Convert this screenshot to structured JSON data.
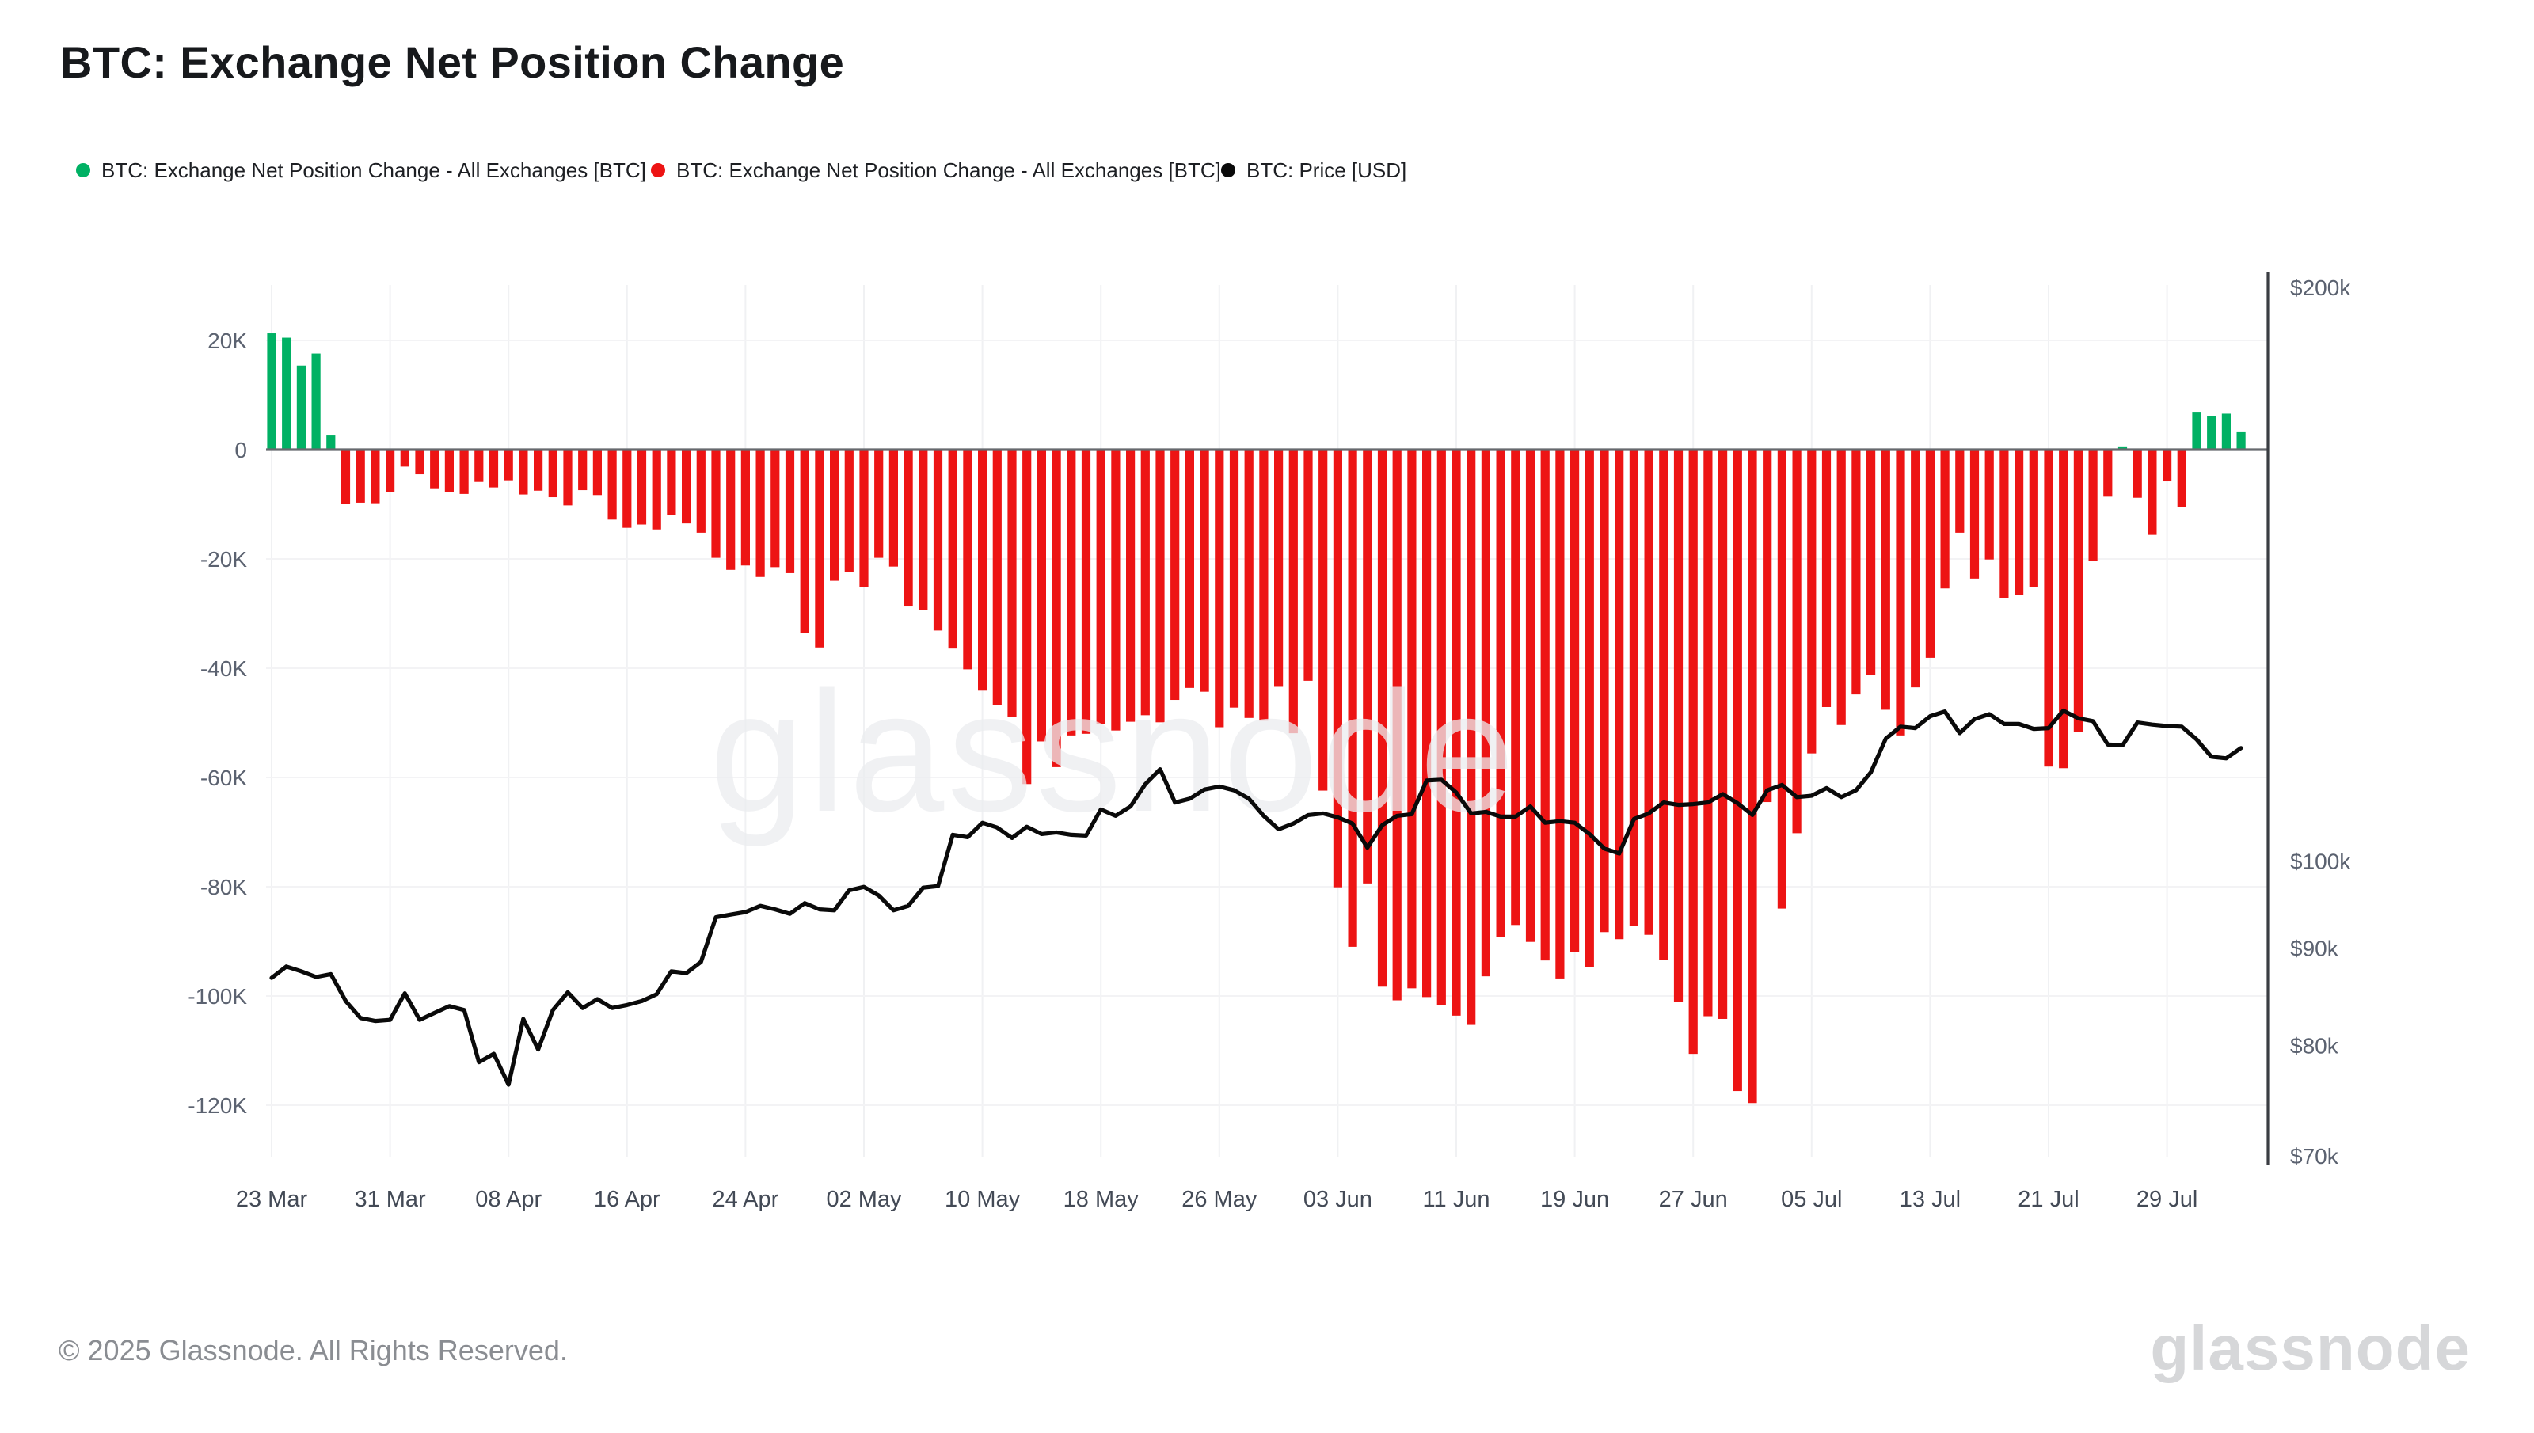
{
  "header": {
    "title": "BTC: Exchange Net Position Change"
  },
  "legend": [
    {
      "label": "BTC: Exchange Net Position Change - All Exchanges [BTC]",
      "color": "#00b164",
      "x": 48
    },
    {
      "label": "BTC: Exchange Net Position Change - All Exchanges [BTC]",
      "color": "#ed1414",
      "x": 411
    },
    {
      "label": "BTC: Price [USD]",
      "color": "#0a0a0a",
      "x": 771
    }
  ],
  "footer": {
    "copyright": "© 2025 Glassnode. All Rights Reserved.",
    "brand": "glassnode"
  },
  "watermark": {
    "text": "glassnode",
    "color": "#ebecef"
  },
  "chart_data": {
    "type": "bar",
    "title": "BTC: Exchange Net Position Change",
    "start_date": "2025-03-23",
    "x_tick_labels": [
      "23 Mar",
      "31 Mar",
      "08 Apr",
      "16 Apr",
      "24 Apr",
      "02 May",
      "10 May",
      "18 May",
      "26 May",
      "03 Jun",
      "11 Jun",
      "19 Jun",
      "27 Jun",
      "05 Jul",
      "13 Jul",
      "21 Jul",
      "29 Jul"
    ],
    "x_tick_day_indices": [
      0,
      8,
      16,
      24,
      32,
      40,
      48,
      56,
      64,
      72,
      80,
      88,
      96,
      104,
      112,
      120,
      128
    ],
    "left_axis": {
      "unit": "BTC (thousands)",
      "tick_labels": [
        "20K",
        "0",
        "-20K",
        "-40K",
        "-60K",
        "-80K",
        "-100K",
        "-120K"
      ],
      "tick_values": [
        20,
        0,
        -20,
        -40,
        -60,
        -80,
        -100,
        -120
      ],
      "grid": true
    },
    "right_axis": {
      "scale": "log",
      "unit": "USD",
      "tick_labels": [
        "$200k",
        "$100k",
        "$90k",
        "$80k",
        "$70k"
      ],
      "tick_values": [
        200,
        100,
        90,
        80,
        70
      ]
    },
    "legend_position": "top",
    "series": [
      {
        "name": "BTC: Exchange Net Position Change - All Exchanges [BTC]",
        "type": "bar",
        "axis": "left",
        "color_positive": "#00b164",
        "color_negative": "#ed1414",
        "values_k_btc": [
          21.3,
          20.5,
          15.4,
          17.6,
          2.6,
          -9.9,
          -9.7,
          -9.8,
          -7.7,
          -3.1,
          -4.5,
          -7.2,
          -7.8,
          -8.1,
          -5.9,
          -6.9,
          -5.6,
          -8.2,
          -7.5,
          -8.7,
          -10.2,
          -7.4,
          -8.3,
          -12.8,
          -14.3,
          -13.7,
          -14.6,
          -11.9,
          -13.5,
          -15.2,
          -19.8,
          -22.0,
          -21.2,
          -23.3,
          -21.5,
          -22.6,
          -33.5,
          -36.2,
          -24.0,
          -22.4,
          -25.2,
          -19.8,
          -21.4,
          -28.7,
          -29.3,
          -33.1,
          -36.4,
          -40.2,
          -44.1,
          -46.8,
          -48.9,
          -61.2,
          -53.4,
          -58.1,
          -52.3,
          -52.0,
          -50.2,
          -51.4,
          -49.8,
          -48.6,
          -49.9,
          -45.8,
          -43.6,
          -44.3,
          -50.8,
          -47.2,
          -49.1,
          -49.6,
          -43.4,
          -51.9,
          -42.3,
          -62.4,
          -80.1,
          -91.0,
          -79.4,
          -98.3,
          -100.8,
          -98.6,
          -100.2,
          -101.7,
          -103.6,
          -105.3,
          -96.4,
          -89.2,
          -87.0,
          -90.1,
          -93.5,
          -96.8,
          -91.9,
          -94.7,
          -88.3,
          -89.6,
          -87.2,
          -88.8,
          -93.4,
          -101.1,
          -110.6,
          -103.7,
          -104.2,
          -117.4,
          -119.6,
          -64.5,
          -84.0,
          -70.2,
          -55.6,
          -47.1,
          -50.4,
          -44.8,
          -41.2,
          -47.6,
          -52.3,
          -43.5,
          -38.1,
          -25.4,
          -15.2,
          -23.6,
          -20.1,
          -27.1,
          -26.6,
          -25.2,
          -58.0,
          -58.3,
          -51.6,
          -20.4,
          -8.6,
          0.6,
          -8.8,
          -15.6,
          -5.8,
          -10.5,
          6.8,
          6.2,
          6.6,
          3.2
        ]
      },
      {
        "name": "BTC: Price [USD]",
        "type": "line",
        "axis": "right",
        "color": "#0a0a0a",
        "values_k_usd": [
          86.8,
          88.0,
          87.5,
          86.9,
          87.2,
          84.4,
          82.7,
          82.4,
          82.5,
          85.2,
          82.5,
          83.2,
          83.9,
          83.5,
          78.4,
          79.2,
          76.3,
          82.6,
          79.6,
          83.5,
          85.3,
          83.7,
          84.6,
          83.7,
          84.0,
          84.4,
          85.1,
          87.5,
          87.3,
          88.5,
          93.4,
          93.7,
          94.0,
          94.7,
          94.3,
          93.8,
          95.0,
          94.3,
          94.2,
          96.5,
          96.9,
          95.9,
          94.2,
          94.7,
          96.8,
          97.0,
          103.2,
          102.9,
          104.7,
          104.1,
          102.8,
          104.2,
          103.3,
          103.5,
          103.2,
          103.1,
          106.4,
          105.6,
          106.8,
          109.7,
          111.7,
          107.3,
          107.8,
          109.0,
          109.4,
          108.9,
          107.8,
          105.6,
          103.9,
          104.6,
          105.7,
          105.9,
          105.4,
          104.6,
          101.6,
          104.4,
          105.6,
          105.8,
          110.2,
          110.3,
          108.6,
          105.9,
          106.1,
          105.5,
          105.5,
          106.8,
          104.7,
          104.9,
          104.7,
          103.3,
          101.5,
          100.9,
          105.2,
          105.9,
          107.3,
          107.0,
          107.1,
          107.3,
          108.4,
          107.2,
          105.7,
          108.9,
          109.6,
          108.0,
          108.2,
          109.2,
          108.0,
          108.9,
          111.3,
          115.9,
          117.6,
          117.4,
          119.1,
          119.8,
          116.7,
          118.7,
          119.4,
          118.0,
          118.0,
          117.3,
          117.4,
          119.9,
          118.8,
          118.4,
          115.1,
          115.0,
          118.2,
          117.9,
          117.7,
          117.6,
          115.8,
          113.4,
          113.2,
          114.6
        ]
      }
    ]
  }
}
